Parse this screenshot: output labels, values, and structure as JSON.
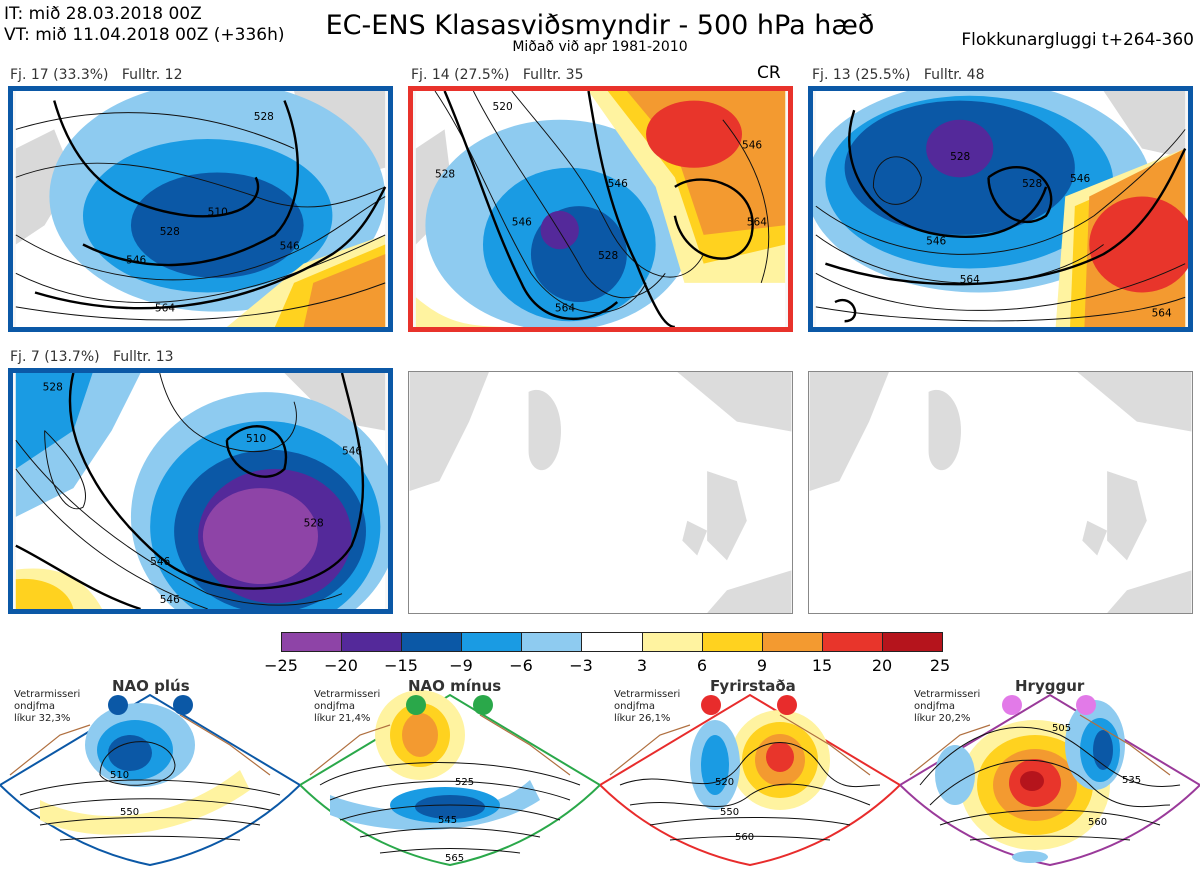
{
  "header": {
    "issue_time": "IT: mið 28.03.2018 00Z",
    "valid_time": "VT: mið 11.04.2018 00Z  (+336h)",
    "title": "EC-ENS Klasasviðsmyndir - 500 hPa hæð",
    "subtitle": "Miðað við apr 1981-2010",
    "window": "Flokkunargluggi t+264-360"
  },
  "panels": [
    {
      "label": "Fj. 17 (33.3%)   Fulltr. 12",
      "border": "#0b58a6",
      "badge": "",
      "contours": [
        "510",
        "528",
        "546",
        "564",
        "546",
        "528"
      ]
    },
    {
      "label": "Fj. 14 (27.5%)   Fulltr. 35",
      "border": "#e8322b",
      "badge": "CR",
      "contours": [
        "520",
        "528",
        "546",
        "564",
        "546",
        "528",
        "546",
        "564"
      ]
    },
    {
      "label": "Fj. 13 (25.5%)   Fulltr. 48",
      "border": "#0b58a6",
      "badge": "",
      "contours": [
        "528",
        "546",
        "564",
        "546",
        "564",
        "528"
      ]
    },
    {
      "label": "Fj. 7 (13.7%)   Fulltr. 13",
      "border": "#0b58a6",
      "badge": "",
      "contours": [
        "528",
        "510",
        "528",
        "546",
        "546",
        "546"
      ]
    }
  ],
  "colorbar": {
    "colors": [
      "#8e44a7",
      "#54299a",
      "#0b58a6",
      "#1a9be3",
      "#8ecbf0",
      "#ffffff",
      "#fff3a0",
      "#ffd21f",
      "#f39a30",
      "#e8352b",
      "#b5141c"
    ],
    "ticks": [
      "−25",
      "−20",
      "−15",
      "−9",
      "−6",
      "−3",
      "3",
      "6",
      "9",
      "15",
      "20",
      "25"
    ]
  },
  "regimes": [
    {
      "title": "NAO plús",
      "note": [
        "Vetrarmisseri",
        "ondjfma",
        "líkur 32,3%"
      ],
      "color": "#0b58a6",
      "contours": [
        "510",
        "550"
      ]
    },
    {
      "title": "NAO mínus",
      "note": [
        "Vetrarmisseri",
        "ondjfma",
        "líkur 21,4%"
      ],
      "color": "#2aa84a",
      "contours": [
        "525",
        "545",
        "565"
      ]
    },
    {
      "title": "Fyrirstaða",
      "note": [
        "Vetrarmisseri",
        "ondjfma",
        "líkur 26,1%"
      ],
      "color": "#e82c2c",
      "contours": [
        "520",
        "550",
        "560"
      ]
    },
    {
      "title": "Hryggur",
      "note": [
        "Vetrarmisseri",
        "ondjfma",
        "líkur 20,2%"
      ],
      "color": "#e27ae8",
      "contours": [
        "505",
        "535",
        "560"
      ]
    }
  ]
}
